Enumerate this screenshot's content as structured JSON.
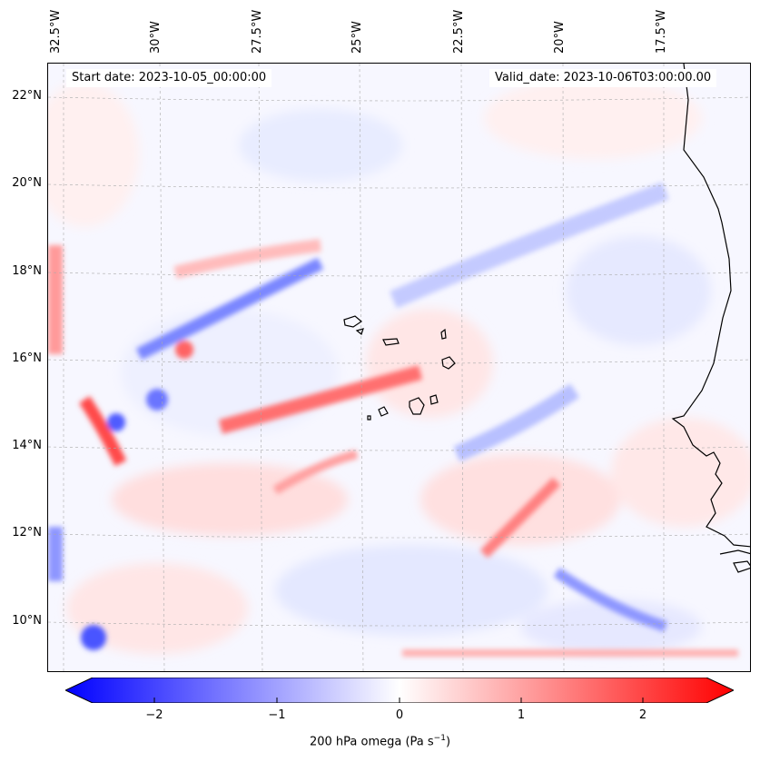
{
  "map": {
    "start_date": "Start date: 2023-10-05_00:00:00",
    "valid_date": "Valid_date: 2023-10-06T03:00:00.00",
    "lon_labels": [
      "32.5°W",
      "30°W",
      "27.5°W",
      "25°W",
      "22.5°W",
      "20°W",
      "17.5°W"
    ],
    "lat_labels": [
      "22°N",
      "20°N",
      "18°N",
      "16°N",
      "14°N",
      "12°N",
      "10°N"
    ],
    "colorbar": {
      "ticks": [
        "−2",
        "−1",
        "0",
        "1",
        "2"
      ],
      "label_main": "200 hPa omega (Pa s",
      "label_sup": "−1",
      "label_end": ")",
      "colors": {
        "min": "#0000ff",
        "mid": "#ffffff",
        "max": "#ff0000"
      }
    }
  }
}
